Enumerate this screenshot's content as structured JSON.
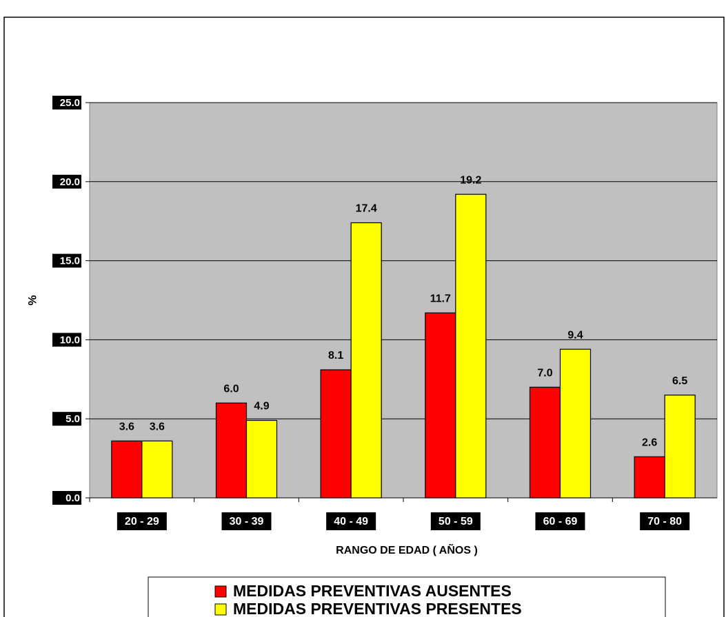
{
  "chart_data": {
    "type": "bar",
    "categories": [
      "20 - 29",
      "30 - 39",
      "40 - 49",
      "50 - 59",
      "60 - 69",
      "70 - 80"
    ],
    "series": [
      {
        "name": "MEDIDAS PREVENTIVAS AUSENTES",
        "color": "#ff0000",
        "values": [
          3.6,
          6.0,
          8.1,
          11.7,
          7.0,
          2.6
        ],
        "value_labels": [
          "3.6",
          "6.0",
          "8.1",
          "11.7",
          "7.0",
          "2.6"
        ]
      },
      {
        "name": "MEDIDAS PREVENTIVAS PRESENTES",
        "color": "#ffff00",
        "values": [
          3.6,
          4.9,
          17.4,
          19.2,
          9.4,
          6.5
        ],
        "value_labels": [
          "3.6",
          "4.9",
          "17.4",
          "19.2",
          "9.4",
          "6.5"
        ]
      }
    ],
    "ylabel": "%",
    "xlabel": "RANGO DE EDAD ( AÑOS )",
    "ylim": [
      0,
      25
    ],
    "yticks": [
      {
        "value": 0,
        "label": "0.0"
      },
      {
        "value": 5,
        "label": "5.0"
      },
      {
        "value": 10,
        "label": "10.0"
      },
      {
        "value": 15,
        "label": "15.0"
      },
      {
        "value": 20,
        "label": "20.0"
      },
      {
        "value": 25,
        "label": "25.0"
      }
    ],
    "grid": true,
    "legend": "bottom"
  }
}
